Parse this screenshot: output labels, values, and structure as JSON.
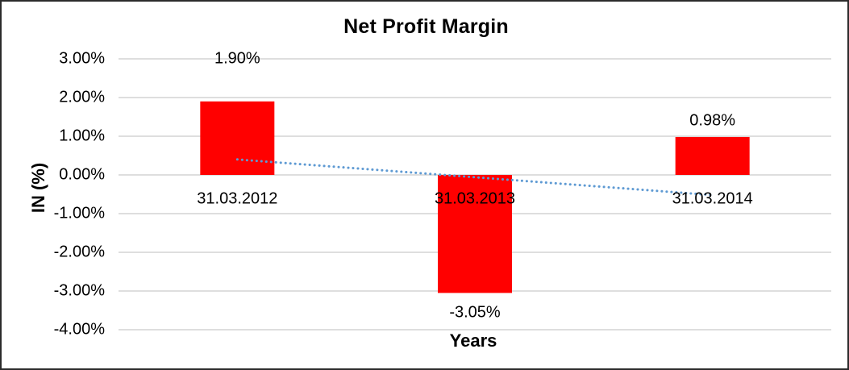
{
  "chart_data": {
    "type": "bar",
    "title": "Net Profit Margin",
    "xlabel": "Years",
    "ylabel": "IN (%)",
    "categories": [
      "31.03.2012",
      "31.03.2013",
      "31.03.2014"
    ],
    "series": [
      {
        "name": "Net Profit Margin",
        "values": [
          1.9,
          -3.05,
          0.98
        ]
      }
    ],
    "data_labels": [
      "1.90%",
      "-3.05%",
      "0.98%"
    ],
    "ytick_labels": [
      "3.00%",
      "2.00%",
      "1.00%",
      "0.00%",
      "-1.00%",
      "-2.00%",
      "-3.00%",
      "-4.00%"
    ],
    "ytick_values": [
      3,
      2,
      1,
      0,
      -1,
      -2,
      -3,
      -4
    ],
    "ylim": [
      -4,
      3
    ],
    "grid": true,
    "legend_position": "none",
    "colors": {
      "bar": "#FF0000",
      "gridline": "#D4D4D4",
      "text": "#000000",
      "frame_border": "#2B2B2B",
      "trendline": "#5E9AD3"
    },
    "trendline": {
      "type": "linear",
      "style": "dotted",
      "start_value": 0.4,
      "end_value": -0.52
    }
  }
}
